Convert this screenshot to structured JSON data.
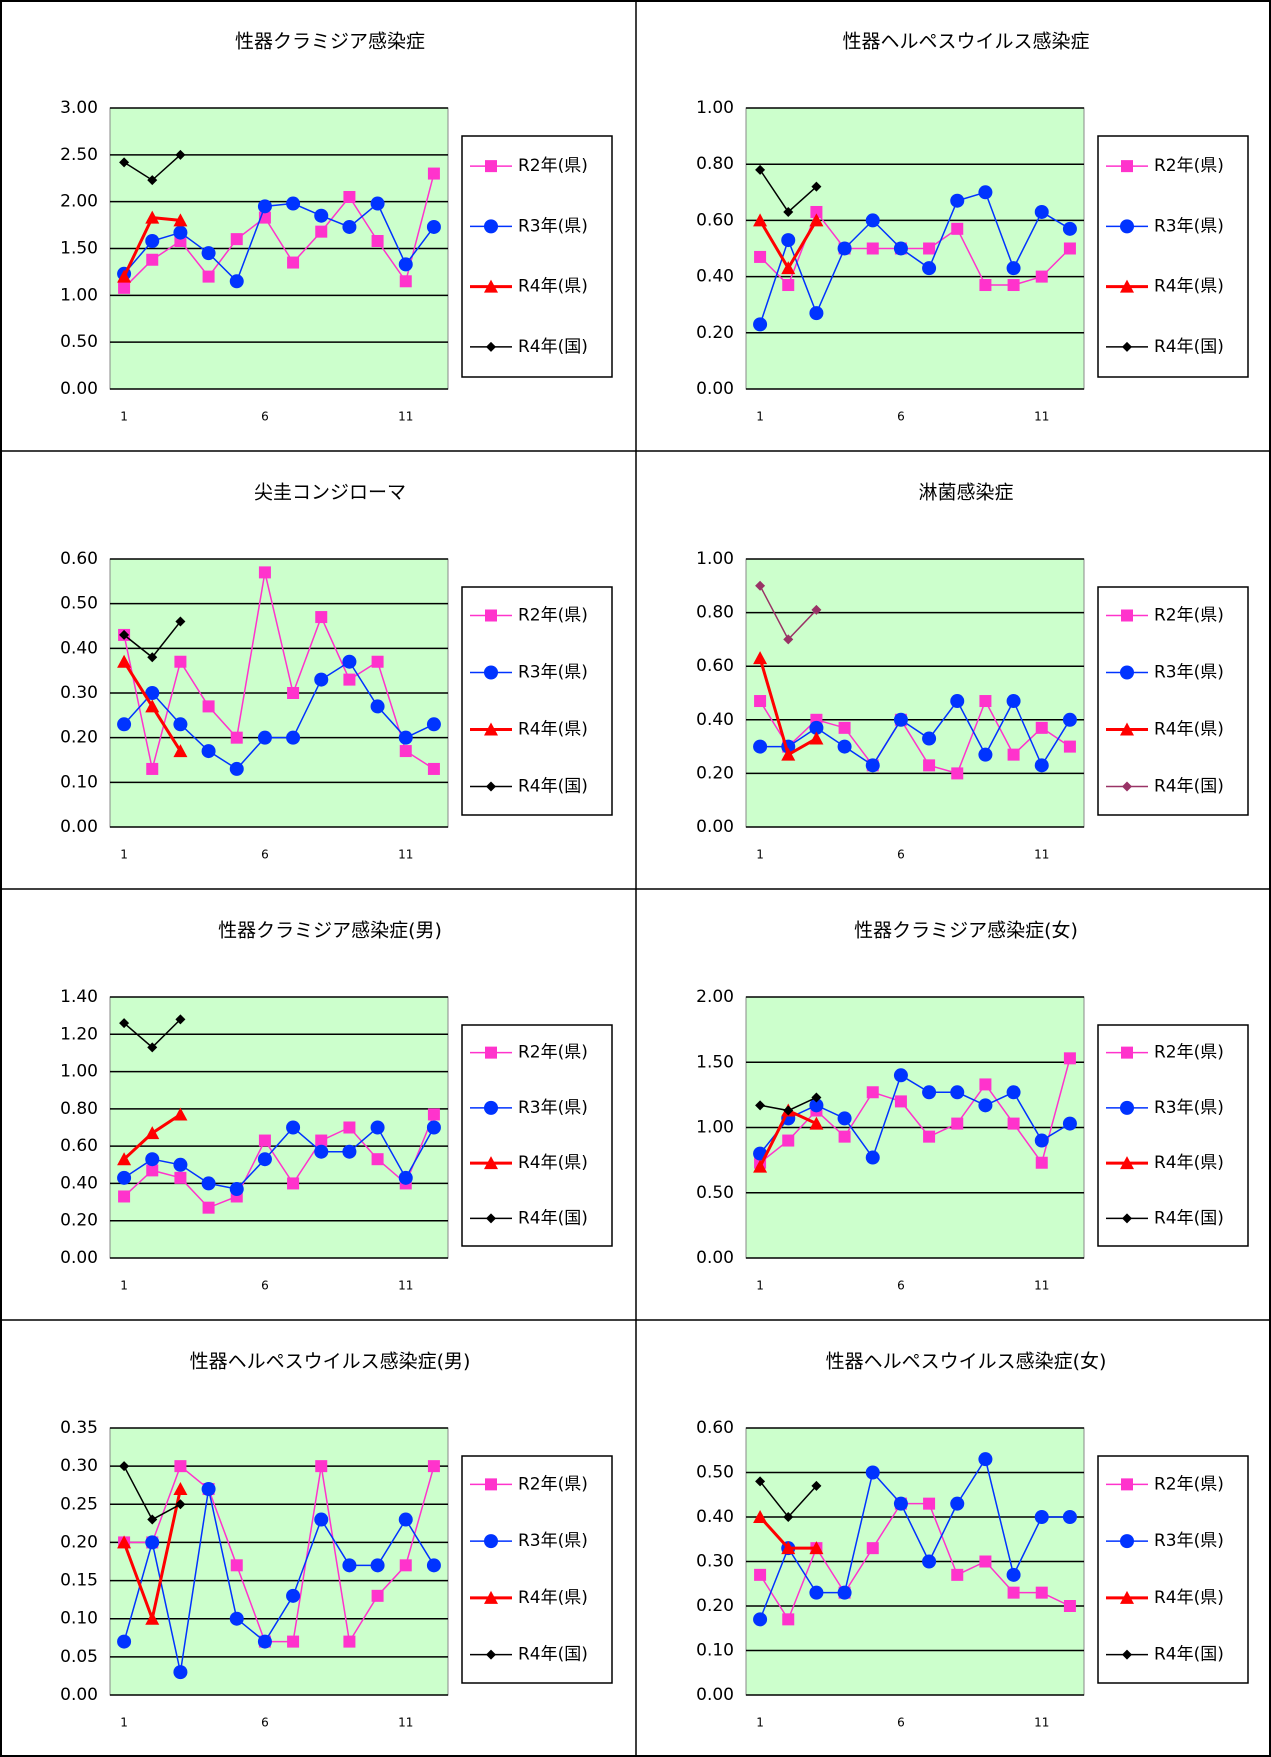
{
  "chart_data": [
    {
      "type": "line",
      "title": "性器クラミジア感染症",
      "grid": true,
      "x": [
        1,
        2,
        3,
        4,
        5,
        6,
        7,
        8,
        9,
        10,
        11,
        12
      ],
      "xlim": [
        0.5,
        12.5
      ],
      "xticks": [
        1,
        6,
        11
      ],
      "ylim": [
        0,
        3
      ],
      "yticks": [
        {
          "value": 0,
          "label": "0.00"
        },
        {
          "value": 0.5,
          "label": "0.50"
        },
        {
          "value": 1,
          "label": "1.00"
        },
        {
          "value": 1.5,
          "label": "1.50"
        },
        {
          "value": 2,
          "label": "2.00"
        },
        {
          "value": 2.5,
          "label": "2.50"
        },
        {
          "value": 3,
          "label": "3.00"
        }
      ],
      "series": [
        {
          "name": "R2年(県)",
          "color": "#ff33cc",
          "marker": "square",
          "values": [
            1.08,
            1.38,
            1.58,
            1.2,
            1.6,
            1.83,
            1.35,
            1.68,
            2.05,
            1.58,
            1.15,
            2.3
          ]
        },
        {
          "name": "R3年(県)",
          "color": "#0033ff",
          "marker": "circle",
          "values": [
            1.23,
            1.58,
            1.67,
            1.45,
            1.15,
            1.95,
            1.98,
            1.85,
            1.73,
            1.98,
            1.33,
            1.73
          ]
        },
        {
          "name": "R4年(県)",
          "color": "#ff0000",
          "marker": "triangle",
          "values": [
            1.2,
            1.83,
            1.8,
            null,
            null,
            null,
            null,
            null,
            null,
            null,
            null,
            null
          ]
        },
        {
          "name": "R4年(国)",
          "color": "#000000",
          "marker": "diamond",
          "values": [
            2.42,
            2.23,
            2.5,
            null,
            null,
            null,
            null,
            null,
            null,
            null,
            null,
            null
          ]
        }
      ]
    },
    {
      "type": "line",
      "title": "性器ヘルペスウイルス感染症",
      "grid": true,
      "x": [
        1,
        2,
        3,
        4,
        5,
        6,
        7,
        8,
        9,
        10,
        11,
        12
      ],
      "xlim": [
        0.5,
        12.5
      ],
      "xticks": [
        1,
        6,
        11
      ],
      "ylim": [
        0,
        1
      ],
      "yticks": [
        {
          "value": 0,
          "label": "0.00"
        },
        {
          "value": 0.2,
          "label": "0.20"
        },
        {
          "value": 0.4,
          "label": "0.40"
        },
        {
          "value": 0.6,
          "label": "0.60"
        },
        {
          "value": 0.8,
          "label": "0.80"
        },
        {
          "value": 1,
          "label": "1.00"
        }
      ],
      "series": [
        {
          "name": "R2年(県)",
          "color": "#ff33cc",
          "marker": "square",
          "values": [
            0.47,
            0.37,
            0.63,
            0.5,
            0.5,
            0.5,
            0.5,
            0.57,
            0.37,
            0.37,
            0.4,
            0.5
          ]
        },
        {
          "name": "R3年(県)",
          "color": "#0033ff",
          "marker": "circle",
          "values": [
            0.23,
            0.53,
            0.27,
            0.5,
            0.6,
            0.5,
            0.43,
            0.67,
            0.7,
            0.43,
            0.63,
            0.57
          ]
        },
        {
          "name": "R4年(県)",
          "color": "#ff0000",
          "marker": "triangle",
          "values": [
            0.6,
            0.43,
            0.6,
            null,
            null,
            null,
            null,
            null,
            null,
            null,
            null,
            null
          ]
        },
        {
          "name": "R4年(国)",
          "color": "#000000",
          "marker": "diamond",
          "values": [
            0.78,
            0.63,
            0.72,
            null,
            null,
            null,
            null,
            null,
            null,
            null,
            null,
            null
          ]
        }
      ]
    },
    {
      "type": "line",
      "title": "尖圭コンジローマ",
      "grid": true,
      "x": [
        1,
        2,
        3,
        4,
        5,
        6,
        7,
        8,
        9,
        10,
        11,
        12
      ],
      "xlim": [
        0.5,
        12.5
      ],
      "xticks": [
        1,
        6,
        11
      ],
      "ylim": [
        0,
        0.6
      ],
      "yticks": [
        {
          "value": 0,
          "label": "0.00"
        },
        {
          "value": 0.1,
          "label": "0.10"
        },
        {
          "value": 0.2,
          "label": "0.20"
        },
        {
          "value": 0.3,
          "label": "0.30"
        },
        {
          "value": 0.4,
          "label": "0.40"
        },
        {
          "value": 0.5,
          "label": "0.50"
        },
        {
          "value": 0.6,
          "label": "0.60"
        }
      ],
      "series": [
        {
          "name": "R2年(県)",
          "color": "#ff33cc",
          "marker": "square",
          "values": [
            0.43,
            0.13,
            0.37,
            0.27,
            0.2,
            0.57,
            0.3,
            0.47,
            0.33,
            0.37,
            0.17,
            0.13
          ]
        },
        {
          "name": "R3年(県)",
          "color": "#0033ff",
          "marker": "circle",
          "values": [
            0.23,
            0.3,
            0.23,
            0.17,
            0.13,
            0.2,
            0.2,
            0.33,
            0.37,
            0.27,
            0.2,
            0.23
          ]
        },
        {
          "name": "R4年(県)",
          "color": "#ff0000",
          "marker": "triangle",
          "values": [
            0.37,
            0.27,
            0.17,
            null,
            null,
            null,
            null,
            null,
            null,
            null,
            null,
            null
          ]
        },
        {
          "name": "R4年(国)",
          "color": "#000000",
          "marker": "diamond",
          "values": [
            0.43,
            0.38,
            0.46,
            null,
            null,
            null,
            null,
            null,
            null,
            null,
            null,
            null
          ]
        }
      ]
    },
    {
      "type": "line",
      "title": "淋菌感染症",
      "grid": true,
      "x": [
        1,
        2,
        3,
        4,
        5,
        6,
        7,
        8,
        9,
        10,
        11,
        12
      ],
      "xlim": [
        0.5,
        12.5
      ],
      "xticks": [
        1,
        6,
        11
      ],
      "ylim": [
        0,
        1
      ],
      "yticks": [
        {
          "value": 0,
          "label": "0.00"
        },
        {
          "value": 0.2,
          "label": "0.20"
        },
        {
          "value": 0.4,
          "label": "0.40"
        },
        {
          "value": 0.6,
          "label": "0.60"
        },
        {
          "value": 0.8,
          "label": "0.80"
        },
        {
          "value": 1,
          "label": "1.00"
        }
      ],
      "series": [
        {
          "name": "R2年(県)",
          "color": "#ff33cc",
          "marker": "square",
          "values": [
            0.47,
            0.3,
            0.4,
            0.37,
            0.23,
            0.4,
            0.23,
            0.2,
            0.47,
            0.27,
            0.37,
            0.3
          ]
        },
        {
          "name": "R3年(県)",
          "color": "#0033ff",
          "marker": "circle",
          "values": [
            0.3,
            0.3,
            0.37,
            0.3,
            0.23,
            0.4,
            0.33,
            0.47,
            0.27,
            0.47,
            0.23,
            0.4
          ]
        },
        {
          "name": "R4年(県)",
          "color": "#ff0000",
          "marker": "triangle",
          "values": [
            0.63,
            0.27,
            0.33,
            null,
            null,
            null,
            null,
            null,
            null,
            null,
            null,
            null
          ]
        },
        {
          "name": "R4年(国)",
          "color": "#993366",
          "marker": "diamond",
          "values": [
            0.9,
            0.7,
            0.81,
            null,
            null,
            null,
            null,
            null,
            null,
            null,
            null,
            null
          ]
        }
      ]
    },
    {
      "type": "line",
      "title": "性器クラミジア感染症(男)",
      "grid": true,
      "x": [
        1,
        2,
        3,
        4,
        5,
        6,
        7,
        8,
        9,
        10,
        11,
        12
      ],
      "xlim": [
        0.5,
        12.5
      ],
      "xticks": [
        1,
        6,
        11
      ],
      "ylim": [
        0,
        1.4
      ],
      "yticks": [
        {
          "value": 0,
          "label": "0.00"
        },
        {
          "value": 0.2,
          "label": "0.20"
        },
        {
          "value": 0.4,
          "label": "0.40"
        },
        {
          "value": 0.6,
          "label": "0.60"
        },
        {
          "value": 0.8,
          "label": "0.80"
        },
        {
          "value": 1,
          "label": "1.00"
        },
        {
          "value": 1.2,
          "label": "1.20"
        },
        {
          "value": 1.4,
          "label": "1.40"
        }
      ],
      "series": [
        {
          "name": "R2年(県)",
          "color": "#ff33cc",
          "marker": "square",
          "values": [
            0.33,
            0.47,
            0.43,
            0.27,
            0.33,
            0.63,
            0.4,
            0.63,
            0.7,
            0.53,
            0.4,
            0.77
          ]
        },
        {
          "name": "R3年(県)",
          "color": "#0033ff",
          "marker": "circle",
          "values": [
            0.43,
            0.53,
            0.5,
            0.4,
            0.37,
            0.53,
            0.7,
            0.57,
            0.57,
            0.7,
            0.43,
            0.7
          ]
        },
        {
          "name": "R4年(県)",
          "color": "#ff0000",
          "marker": "triangle",
          "values": [
            0.53,
            0.67,
            0.77,
            null,
            null,
            null,
            null,
            null,
            null,
            null,
            null,
            null
          ]
        },
        {
          "name": "R4年(国)",
          "color": "#000000",
          "marker": "diamond",
          "values": [
            1.26,
            1.13,
            1.28,
            null,
            null,
            null,
            null,
            null,
            null,
            null,
            null,
            null
          ]
        }
      ]
    },
    {
      "type": "line",
      "title": "性器クラミジア感染症(女)",
      "grid": true,
      "x": [
        1,
        2,
        3,
        4,
        5,
        6,
        7,
        8,
        9,
        10,
        11,
        12
      ],
      "xlim": [
        0.5,
        12.5
      ],
      "xticks": [
        1,
        6,
        11
      ],
      "ylim": [
        0,
        2
      ],
      "yticks": [
        {
          "value": 0,
          "label": "0.00"
        },
        {
          "value": 0.5,
          "label": "0.50"
        },
        {
          "value": 1,
          "label": "1.00"
        },
        {
          "value": 1.5,
          "label": "1.50"
        },
        {
          "value": 2,
          "label": "2.00"
        }
      ],
      "series": [
        {
          "name": "R2年(県)",
          "color": "#ff33cc",
          "marker": "square",
          "values": [
            0.73,
            0.9,
            1.13,
            0.93,
            1.27,
            1.2,
            0.93,
            1.03,
            1.33,
            1.03,
            0.73,
            1.53
          ]
        },
        {
          "name": "R3年(県)",
          "color": "#0033ff",
          "marker": "circle",
          "values": [
            0.8,
            1.07,
            1.17,
            1.07,
            0.77,
            1.4,
            1.27,
            1.27,
            1.17,
            1.27,
            0.9,
            1.03
          ]
        },
        {
          "name": "R4年(県)",
          "color": "#ff0000",
          "marker": "triangle",
          "values": [
            0.7,
            1.13,
            1.03,
            null,
            null,
            null,
            null,
            null,
            null,
            null,
            null,
            null
          ]
        },
        {
          "name": "R4年(国)",
          "color": "#000000",
          "marker": "diamond",
          "values": [
            1.17,
            1.13,
            1.23,
            null,
            null,
            null,
            null,
            null,
            null,
            null,
            null,
            null
          ]
        }
      ]
    },
    {
      "type": "line",
      "title": "性器ヘルペスウイルス感染症(男)",
      "grid": true,
      "x": [
        1,
        2,
        3,
        4,
        5,
        6,
        7,
        8,
        9,
        10,
        11,
        12
      ],
      "xlim": [
        0.5,
        12.5
      ],
      "xticks": [
        1,
        6,
        11
      ],
      "ylim": [
        0,
        0.35
      ],
      "yticks": [
        {
          "value": 0,
          "label": "0.00"
        },
        {
          "value": 0.05,
          "label": "0.05"
        },
        {
          "value": 0.1,
          "label": "0.10"
        },
        {
          "value": 0.15,
          "label": "0.15"
        },
        {
          "value": 0.2,
          "label": "0.20"
        },
        {
          "value": 0.25,
          "label": "0.25"
        },
        {
          "value": 0.3,
          "label": "0.30"
        },
        {
          "value": 0.35,
          "label": "0.35"
        }
      ],
      "series": [
        {
          "name": "R2年(県)",
          "color": "#ff33cc",
          "marker": "square",
          "values": [
            0.2,
            0.2,
            0.3,
            0.27,
            0.17,
            0.07,
            0.07,
            0.3,
            0.07,
            0.13,
            0.17,
            0.3
          ]
        },
        {
          "name": "R3年(県)",
          "color": "#0033ff",
          "marker": "circle",
          "values": [
            0.07,
            0.2,
            0.03,
            0.27,
            0.1,
            0.07,
            0.13,
            0.23,
            0.17,
            0.17,
            0.23,
            0.17
          ]
        },
        {
          "name": "R4年(県)",
          "color": "#ff0000",
          "marker": "triangle",
          "values": [
            0.2,
            0.1,
            0.27,
            null,
            null,
            null,
            null,
            null,
            null,
            null,
            null,
            null
          ]
        },
        {
          "name": "R4年(国)",
          "color": "#000000",
          "marker": "diamond",
          "values": [
            0.3,
            0.23,
            0.25,
            null,
            null,
            null,
            null,
            null,
            null,
            null,
            null,
            null
          ]
        }
      ]
    },
    {
      "type": "line",
      "title": "性器ヘルペスウイルス感染症(女)",
      "grid": true,
      "x": [
        1,
        2,
        3,
        4,
        5,
        6,
        7,
        8,
        9,
        10,
        11,
        12
      ],
      "xlim": [
        0.5,
        12.5
      ],
      "xticks": [
        1,
        6,
        11
      ],
      "ylim": [
        0,
        0.6
      ],
      "yticks": [
        {
          "value": 0,
          "label": "0.00"
        },
        {
          "value": 0.1,
          "label": "0.10"
        },
        {
          "value": 0.2,
          "label": "0.20"
        },
        {
          "value": 0.3,
          "label": "0.30"
        },
        {
          "value": 0.4,
          "label": "0.40"
        },
        {
          "value": 0.5,
          "label": "0.50"
        },
        {
          "value": 0.6,
          "label": "0.60"
        }
      ],
      "series": [
        {
          "name": "R2年(県)",
          "color": "#ff33cc",
          "marker": "square",
          "values": [
            0.27,
            0.17,
            0.33,
            0.23,
            0.33,
            0.43,
            0.43,
            0.27,
            0.3,
            0.23,
            0.23,
            0.2
          ]
        },
        {
          "name": "R3年(県)",
          "color": "#0033ff",
          "marker": "circle",
          "values": [
            0.17,
            0.33,
            0.23,
            0.23,
            0.5,
            0.43,
            0.3,
            0.43,
            0.53,
            0.27,
            0.4,
            0.4
          ]
        },
        {
          "name": "R4年(県)",
          "color": "#ff0000",
          "marker": "triangle",
          "values": [
            0.4,
            0.33,
            0.33,
            null,
            null,
            null,
            null,
            null,
            null,
            null,
            null,
            null
          ]
        },
        {
          "name": "R4年(国)",
          "color": "#000000",
          "marker": "diamond",
          "values": [
            0.48,
            0.4,
            0.47,
            null,
            null,
            null,
            null,
            null,
            null,
            null,
            null,
            null
          ]
        }
      ]
    }
  ]
}
